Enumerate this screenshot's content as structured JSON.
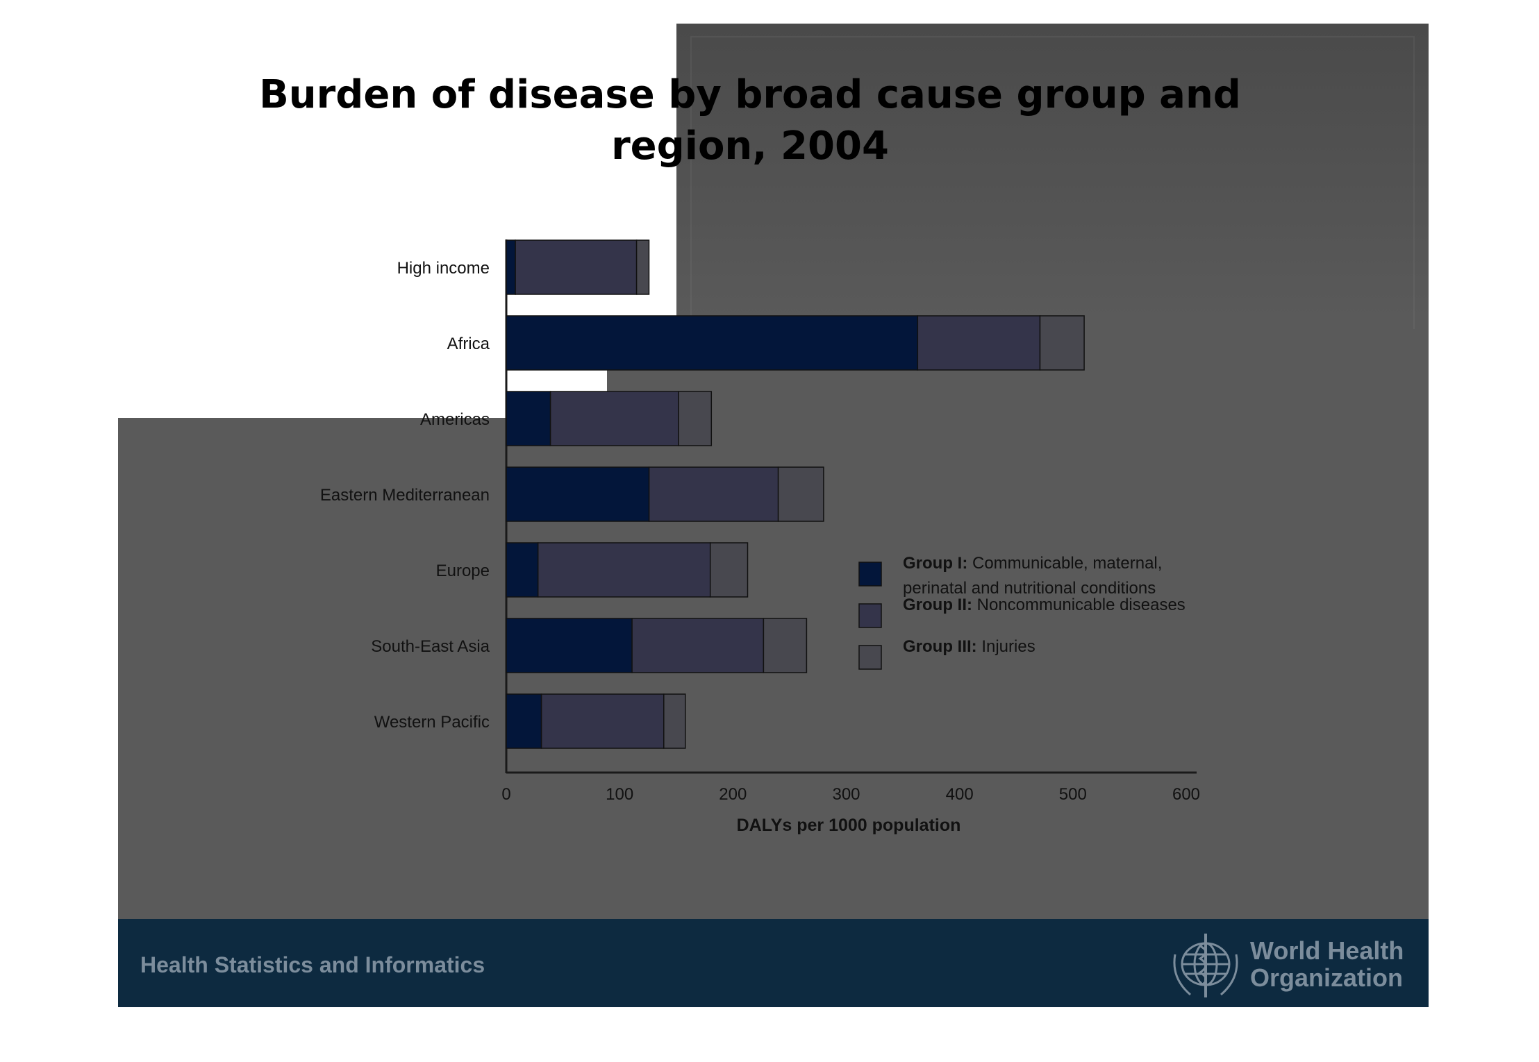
{
  "slide": {
    "title": "Burden of disease by broad cause group and region, 2004",
    "footer_text": "Health Statistics and Informatics",
    "org_name_line1": "World Health",
    "org_name_line2": "Organization",
    "logo_icon": "who-emblem-icon"
  },
  "colors": {
    "group1": "#03163a",
    "group2": "#34344a",
    "group3": "#48484f",
    "footer_bar": "#0d2a40",
    "slide_bg": "#5a5a5a"
  },
  "chart_data": {
    "type": "bar",
    "orientation": "horizontal",
    "stacked": true,
    "title": "Burden of disease by broad cause group and region, 2004",
    "xlabel": "DALYs per 1000 population",
    "ylabel": "",
    "xlim": [
      0,
      600
    ],
    "xticks": [
      0,
      100,
      200,
      300,
      400,
      500,
      600
    ],
    "categories": [
      "High income",
      "Africa",
      "Americas",
      "Eastern Mediterranean",
      "Europe",
      "South-East Asia",
      "Western Pacific"
    ],
    "series": [
      {
        "name": "Group I",
        "description": "Communicable, maternal, perinatal and nutritional conditions",
        "values": [
          8,
          363,
          39,
          126,
          28,
          111,
          31
        ]
      },
      {
        "name": "Group II",
        "description": "Noncommunicable diseases",
        "values": [
          107,
          108,
          113,
          114,
          152,
          116,
          108
        ]
      },
      {
        "name": "Group III",
        "description": "Injuries",
        "values": [
          11,
          39,
          29,
          40,
          33,
          38,
          19
        ]
      }
    ],
    "legend": {
      "placement": "right",
      "entries": [
        {
          "bold": "Group I:",
          "text_line1": "Communicable, maternal,",
          "text_line2": "perinatal and nutritional conditions"
        },
        {
          "bold": "Group II:",
          "text_line1": "Noncommunicable diseases",
          "text_line2": ""
        },
        {
          "bold": "Group III:",
          "text_line1": "Injuries",
          "text_line2": ""
        }
      ]
    },
    "grid": false
  }
}
